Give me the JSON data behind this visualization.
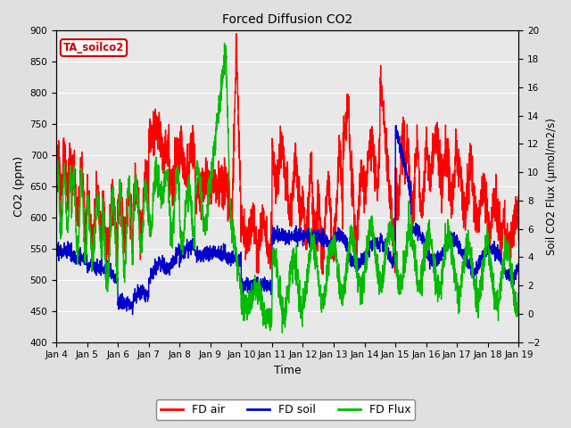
{
  "title": "Forced Diffusion CO2",
  "xlabel": "Time",
  "ylabel_left": "CO2 (ppm)",
  "ylabel_right": "Soil CO2 Flux (μmol/m2/s)",
  "ylim_left": [
    400,
    900
  ],
  "ylim_right": [
    -2,
    20
  ],
  "yticks_left": [
    400,
    450,
    500,
    550,
    600,
    650,
    700,
    750,
    800,
    850,
    900
  ],
  "yticks_right": [
    -2,
    0,
    2,
    4,
    6,
    8,
    10,
    12,
    14,
    16,
    18,
    20
  ],
  "xtick_labels": [
    "Jan 4",
    "Jan 5",
    "Jan 6",
    "Jan 7",
    "Jan 8",
    "Jan 9",
    "Jan 10",
    "Jan 11",
    "Jan 12",
    "Jan 13",
    "Jan 14",
    "Jan 15",
    "Jan 16",
    "Jan 17",
    "Jan 18",
    "Jan 19"
  ],
  "color_air": "#ff0000",
  "color_soil": "#0000cc",
  "color_flux": "#00bb00",
  "legend_label_air": "FD air",
  "legend_label_soil": "FD soil",
  "legend_label_flux": "FD Flux",
  "annotation_label": "TA_soilco2",
  "annotation_fg": "#cc0000",
  "annotation_bg": "#ffffff",
  "background_color": "#e0e0e0",
  "plot_bg_color": "#e8e8e8",
  "grid_color": "#ffffff",
  "linewidth": 1.0,
  "days": 15
}
